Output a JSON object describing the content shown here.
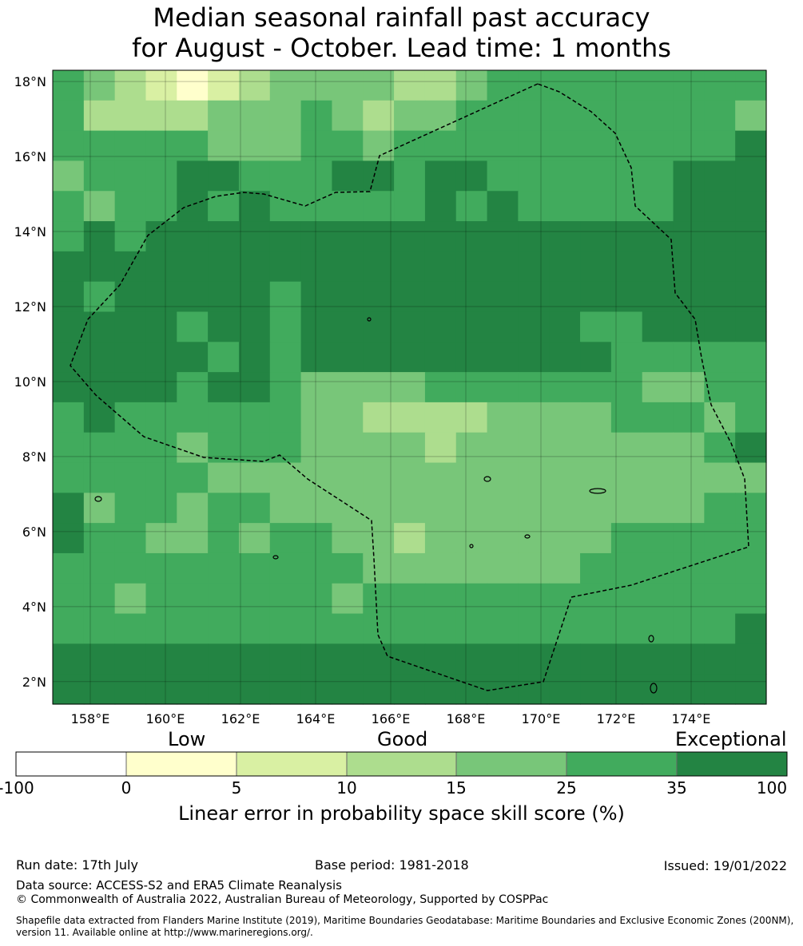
{
  "title": {
    "line1": "Median seasonal rainfall past accuracy",
    "line2": "for August - October. Lead time: 1 months"
  },
  "map": {
    "lat_labels": [
      "18°N",
      "16°N",
      "14°N",
      "12°N",
      "10°N",
      "8°N",
      "6°N",
      "4°N",
      "2°N"
    ],
    "lat_values": [
      18,
      16,
      14,
      12,
      10,
      8,
      6,
      4,
      2
    ],
    "lon_labels": [
      "158°E",
      "160°E",
      "162°E",
      "164°E",
      "166°E",
      "168°E",
      "170°E",
      "172°E",
      "174°E"
    ],
    "lon_values": [
      158,
      160,
      162,
      164,
      166,
      168,
      170,
      172,
      174
    ],
    "extent": {
      "lon": [
        157.0,
        176.0
      ],
      "lat": [
        1.4,
        18.3
      ]
    },
    "grid_step_deg": 0.84,
    "category_colors": [
      "#ffffcc",
      "#d9f0a3",
      "#addd8e",
      "#78c679",
      "#41ab5d",
      "#238443"
    ]
  },
  "colorbar": {
    "category_words": [
      "Low",
      "Good",
      "Exceptional"
    ],
    "bounds": [
      "-100",
      "0",
      "5",
      "10",
      "15",
      "25",
      "35",
      "100"
    ],
    "colors": [
      "#ffffff",
      "#ffffcc",
      "#d9f0a3",
      "#addd8e",
      "#78c679",
      "#41ab5d",
      "#238443"
    ],
    "label": "Linear error in probability space skill score (%)"
  },
  "footer": {
    "run_date": "Run date: 17th July",
    "base_period": "Base period: 1981-2018",
    "issued": "Issued: 19/01/2022",
    "data_source": "Data source: ACCESS-S2 and ERA5 Climate Reanalysis",
    "copyright": "© Commonwealth of Australia 2022, Australian Bureau of Meteorology, Supported by COSPPac",
    "shapefile_line1": "Shapefile data extracted from Flanders Marine Institute (2019), Maritime Boundaries Geodatabase: Maritime Boundaries and Exclusive Economic Zones (200NM),",
    "shapefile_line2": "version 11. Available online at http://www.marineregions.org/."
  }
}
